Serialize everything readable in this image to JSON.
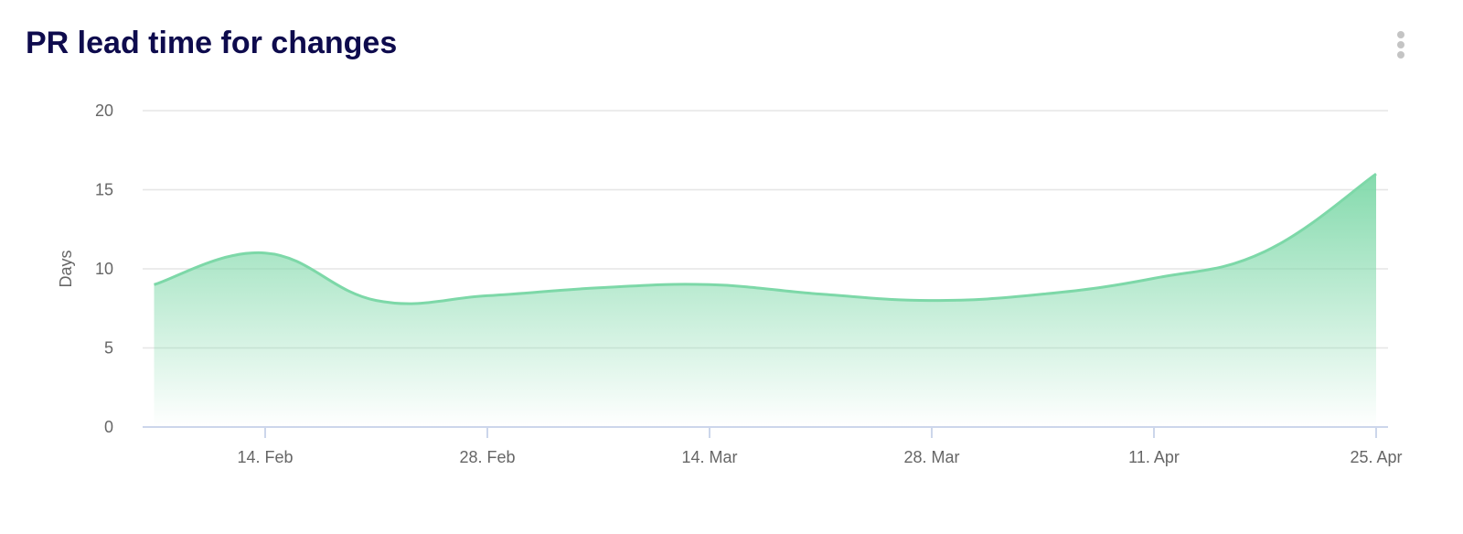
{
  "title": "PR lead time for changes",
  "menu_icon": "kebab-menu-icon",
  "colors": {
    "line": "#7dd8a8",
    "title": "#0e0b4d",
    "axis": "#ccd6eb",
    "grid": "#e6e6e6"
  },
  "chart_data": {
    "type": "area",
    "title": "PR lead time for changes",
    "xlabel": "",
    "ylabel": "Days",
    "ylim": [
      0,
      20
    ],
    "yticks": [
      "0",
      "5",
      "10",
      "15",
      "20"
    ],
    "xticks": [
      "14. Feb",
      "28. Feb",
      "14. Mar",
      "28. Mar",
      "11. Apr",
      "25. Apr"
    ],
    "grid": true,
    "x": [
      "2022-02-07",
      "2022-02-14",
      "2022-02-21",
      "2022-02-28",
      "2022-03-07",
      "2022-03-14",
      "2022-03-21",
      "2022-03-28",
      "2022-04-04",
      "2022-04-11",
      "2022-04-18",
      "2022-04-25"
    ],
    "values": [
      9,
      11,
      8,
      8.3,
      8.8,
      9,
      8.4,
      8,
      8.4,
      9.4,
      11.1,
      16
    ]
  }
}
